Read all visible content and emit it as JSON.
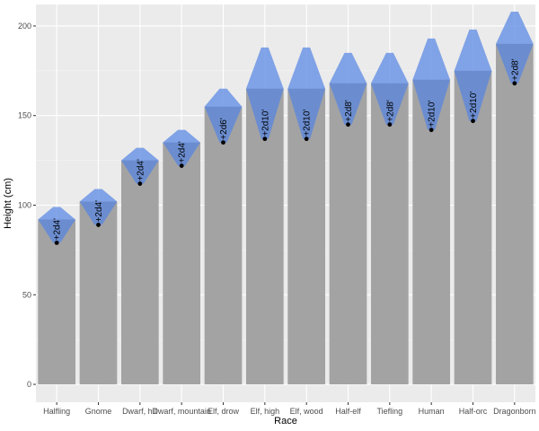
{
  "chart_data": {
    "type": "bar",
    "xlabel": "Race",
    "ylabel": "Height (cm)",
    "ylim": [
      -10,
      212
    ],
    "yticks": [
      0,
      50,
      100,
      150,
      200
    ],
    "grid": true,
    "colors": {
      "panel": "#ebebeb",
      "grid_major": "#ffffff",
      "grid_minor": "#f5f5f5",
      "bar": "#a3a3a3",
      "diamond": "#6d95e5",
      "point": "#000000"
    },
    "categories": [
      "Halfling",
      "Gnome",
      "Dwarf, hill",
      "Dwarf, mountain",
      "Elf, drow",
      "Elf, high",
      "Elf, wood",
      "Half-elf",
      "Tiefling",
      "Human",
      "Half-orc",
      "Dragonborn"
    ],
    "bars": [
      {
        "base": 79,
        "mean": 92,
        "max": 99,
        "label": "+2d4'"
      },
      {
        "base": 89,
        "mean": 102,
        "max": 109,
        "label": "+2d4'"
      },
      {
        "base": 112,
        "mean": 125,
        "max": 132,
        "label": "+2d4'"
      },
      {
        "base": 122,
        "mean": 135,
        "max": 142,
        "label": "+2d4'"
      },
      {
        "base": 135,
        "mean": 155,
        "max": 165,
        "label": "+2d6'"
      },
      {
        "base": 137,
        "mean": 165,
        "max": 188,
        "label": "+2d10'"
      },
      {
        "base": 137,
        "mean": 165,
        "max": 188,
        "label": "+2d10'"
      },
      {
        "base": 145,
        "mean": 168,
        "max": 185,
        "label": "+2d8'"
      },
      {
        "base": 145,
        "mean": 168,
        "max": 185,
        "label": "+2d8'"
      },
      {
        "base": 142,
        "mean": 170,
        "max": 193,
        "label": "+2d10'"
      },
      {
        "base": 147,
        "mean": 175,
        "max": 198,
        "label": "+2d10'"
      },
      {
        "base": 168,
        "mean": 190,
        "max": 208,
        "label": "+2d8'"
      }
    ]
  }
}
